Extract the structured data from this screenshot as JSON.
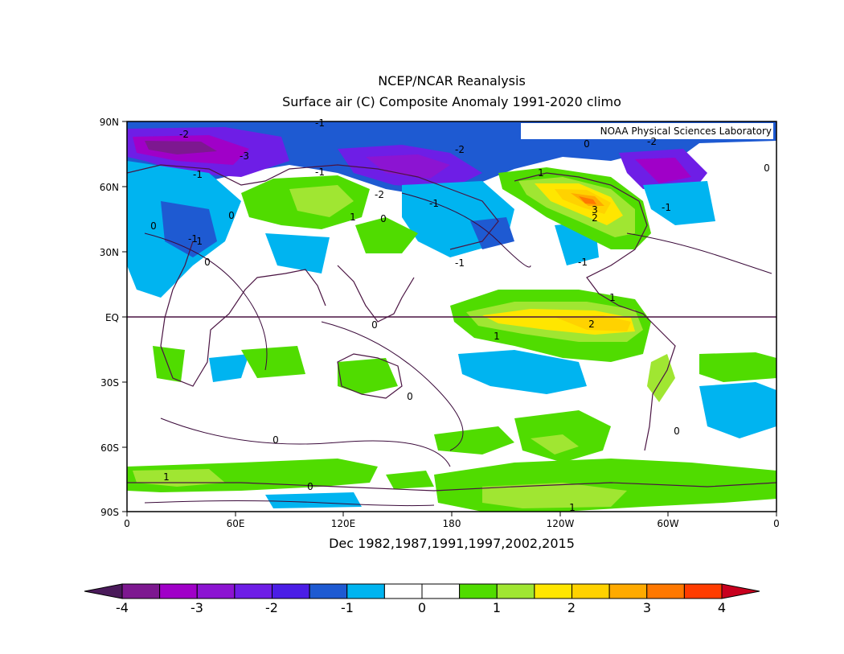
{
  "title_line1": "NCEP/NCAR Reanalysis",
  "title_line2": "Surface air (C) Composite Anomaly 1991-2020 climo",
  "subtitle": "Dec 1982,1987,1991,1997,2002,2015",
  "credit": "NOAA Physical Sciences Laboratory",
  "lat_ticks": [
    "90N",
    "60N",
    "30N",
    "EQ",
    "30S",
    "60S",
    "90S"
  ],
  "lon_ticks": [
    "0",
    "60E",
    "120E",
    "180",
    "120W",
    "60W",
    "0"
  ],
  "colorbar": {
    "labels": [
      "-4",
      "-3",
      "-2",
      "-1",
      "0",
      "1",
      "2",
      "3",
      "4"
    ],
    "under_color": "#4a1a5a",
    "over_color": "#c8001e",
    "colors": [
      "#7d1890",
      "#a000c8",
      "#8c14d2",
      "#6e1ee6",
      "#4b1ee6",
      "#1e5ad2",
      "#00b4f0",
      "#ffffff",
      "#ffffff",
      "#50dc00",
      "#a0e632",
      "#ffe600",
      "#ffd200",
      "#ffaa00",
      "#ff7800",
      "#ff3c00"
    ]
  },
  "contour_labels": [
    "-2",
    "-3",
    "-1",
    "-1",
    "-1",
    "-2",
    "-1",
    "-2",
    "-1",
    "-1",
    "-1",
    "-2",
    "0",
    "0",
    "0",
    "0",
    "0",
    "1",
    "1",
    "1",
    "1",
    "2",
    "2",
    "3",
    "-1",
    "-1",
    "0",
    "0",
    "0",
    "0",
    "1",
    "0",
    "1",
    "0"
  ]
}
